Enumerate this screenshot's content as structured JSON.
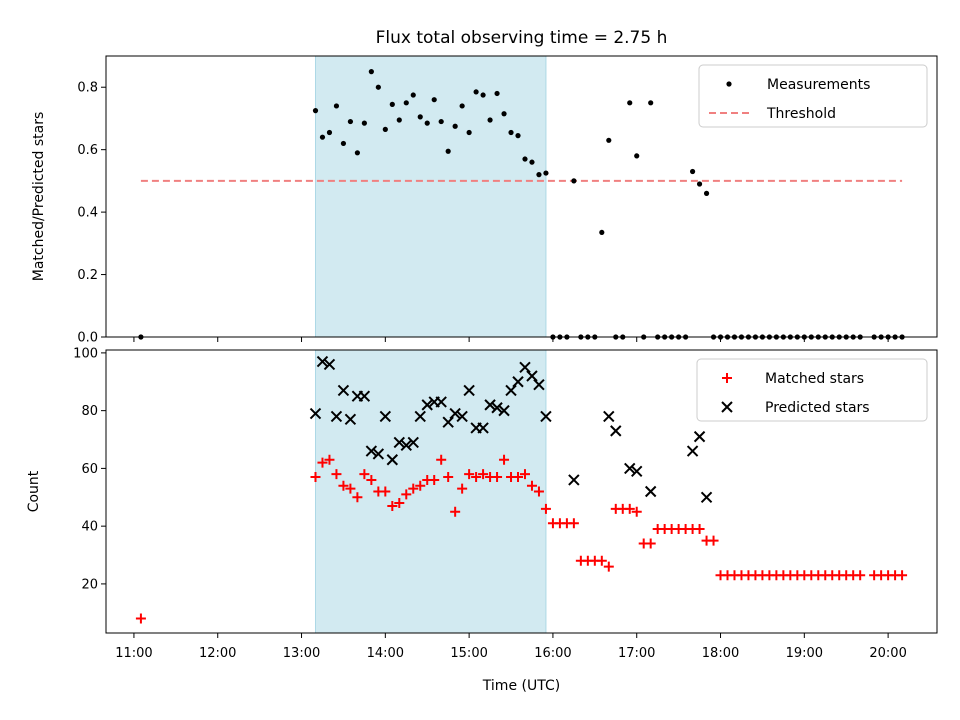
{
  "title": "Flux total observing time = 2.75 h",
  "colors": {
    "measurement": "#000000",
    "threshold": "#f08080",
    "matched": "#ff0000",
    "predicted": "#000000",
    "span_fill": "#add8e6"
  },
  "chart_data": [
    {
      "type": "scatter",
      "name": "ratio",
      "ylabel": "Matched/Predicted stars",
      "xlabel": "",
      "x_range": [
        "10:40",
        "20:35"
      ],
      "ylim": [
        0,
        0.9
      ],
      "y_ticks": [
        0.0,
        0.2,
        0.4,
        0.6,
        0.8
      ],
      "y_tick_labels": [
        "0.0",
        "0.2",
        "0.4",
        "0.6",
        "0.8"
      ],
      "highlight_span": [
        "13:10",
        "15:55"
      ],
      "legend": {
        "position": "upper right",
        "entries": [
          "Measurements",
          "Threshold"
        ]
      },
      "threshold": {
        "label": "Threshold",
        "value": 0.5,
        "x_range": [
          "11:05",
          "20:10"
        ]
      },
      "series": [
        {
          "name": "Measurements",
          "points": [
            [
              "11:05",
              0.0
            ],
            [
              "13:10",
              0.725
            ],
            [
              "13:15",
              0.64
            ],
            [
              "13:20",
              0.655
            ],
            [
              "13:25",
              0.74
            ],
            [
              "13:30",
              0.62
            ],
            [
              "13:35",
              0.69
            ],
            [
              "13:40",
              0.59
            ],
            [
              "13:45",
              0.685
            ],
            [
              "13:50",
              0.85
            ],
            [
              "13:55",
              0.8
            ],
            [
              "14:00",
              0.665
            ],
            [
              "14:05",
              0.745
            ],
            [
              "14:10",
              0.695
            ],
            [
              "14:15",
              0.75
            ],
            [
              "14:20",
              0.775
            ],
            [
              "14:25",
              0.705
            ],
            [
              "14:30",
              0.685
            ],
            [
              "14:35",
              0.76
            ],
            [
              "14:40",
              0.69
            ],
            [
              "14:45",
              0.595
            ],
            [
              "14:50",
              0.675
            ],
            [
              "14:55",
              0.74
            ],
            [
              "15:00",
              0.655
            ],
            [
              "15:05",
              0.785
            ],
            [
              "15:10",
              0.775
            ],
            [
              "15:15",
              0.695
            ],
            [
              "15:20",
              0.78
            ],
            [
              "15:25",
              0.715
            ],
            [
              "15:30",
              0.655
            ],
            [
              "15:35",
              0.645
            ],
            [
              "15:40",
              0.57
            ],
            [
              "15:45",
              0.56
            ],
            [
              "15:50",
              0.52
            ],
            [
              "15:55",
              0.525
            ],
            [
              "16:00",
              0.0
            ],
            [
              "16:05",
              0.0
            ],
            [
              "16:10",
              0.0
            ],
            [
              "16:15",
              0.5
            ],
            [
              "16:20",
              0.0
            ],
            [
              "16:25",
              0.0
            ],
            [
              "16:30",
              0.0
            ],
            [
              "16:35",
              0.335
            ],
            [
              "16:40",
              0.63
            ],
            [
              "16:45",
              0.0
            ],
            [
              "16:50",
              0.0
            ],
            [
              "16:55",
              0.75
            ],
            [
              "17:00",
              0.58
            ],
            [
              "17:05",
              0.0
            ],
            [
              "17:10",
              0.75
            ],
            [
              "17:15",
              0.0
            ],
            [
              "17:20",
              0.0
            ],
            [
              "17:25",
              0.0
            ],
            [
              "17:30",
              0.0
            ],
            [
              "17:35",
              0.0
            ],
            [
              "17:40",
              0.53
            ],
            [
              "17:45",
              0.49
            ],
            [
              "17:50",
              0.46
            ],
            [
              "17:55",
              0.0
            ],
            [
              "18:00",
              0.0
            ],
            [
              "18:05",
              0.0
            ],
            [
              "18:10",
              0.0
            ],
            [
              "18:15",
              0.0
            ],
            [
              "18:20",
              0.0
            ],
            [
              "18:25",
              0.0
            ],
            [
              "18:30",
              0.0
            ],
            [
              "18:35",
              0.0
            ],
            [
              "18:40",
              0.0
            ],
            [
              "18:45",
              0.0
            ],
            [
              "18:50",
              0.0
            ],
            [
              "18:55",
              0.0
            ],
            [
              "19:00",
              0.0
            ],
            [
              "19:05",
              0.0
            ],
            [
              "19:10",
              0.0
            ],
            [
              "19:15",
              0.0
            ],
            [
              "19:20",
              0.0
            ],
            [
              "19:25",
              0.0
            ],
            [
              "19:30",
              0.0
            ],
            [
              "19:35",
              0.0
            ],
            [
              "19:40",
              0.0
            ],
            [
              "19:50",
              0.0
            ],
            [
              "19:55",
              0.0
            ],
            [
              "20:00",
              0.0
            ],
            [
              "20:05",
              0.0
            ],
            [
              "20:10",
              0.0
            ]
          ]
        }
      ]
    },
    {
      "type": "scatter",
      "name": "counts",
      "ylabel": "Count",
      "xlabel": "Time (UTC)",
      "x_range": [
        "10:40",
        "20:35"
      ],
      "ylim": [
        3,
        101
      ],
      "y_ticks": [
        20,
        40,
        60,
        80,
        100
      ],
      "y_tick_labels": [
        "20",
        "40",
        "60",
        "80",
        "100"
      ],
      "x_ticks": [
        "11:00",
        "12:00",
        "13:00",
        "14:00",
        "15:00",
        "16:00",
        "17:00",
        "18:00",
        "19:00",
        "20:00"
      ],
      "highlight_span": [
        "13:10",
        "15:55"
      ],
      "legend": {
        "position": "upper right",
        "entries": [
          "Matched stars",
          "Predicted stars"
        ]
      },
      "series": [
        {
          "name": "Matched stars",
          "marker": "plus",
          "points": [
            [
              "11:05",
              8
            ],
            [
              "13:10",
              57
            ],
            [
              "13:15",
              62
            ],
            [
              "13:20",
              63
            ],
            [
              "13:25",
              58
            ],
            [
              "13:30",
              54
            ],
            [
              "13:35",
              53
            ],
            [
              "13:40",
              50
            ],
            [
              "13:45",
              58
            ],
            [
              "13:50",
              56
            ],
            [
              "13:55",
              52
            ],
            [
              "14:00",
              52
            ],
            [
              "14:05",
              47
            ],
            [
              "14:10",
              48
            ],
            [
              "14:15",
              51
            ],
            [
              "14:20",
              53
            ],
            [
              "14:25",
              54
            ],
            [
              "14:30",
              56
            ],
            [
              "14:35",
              56
            ],
            [
              "14:40",
              63
            ],
            [
              "14:45",
              57
            ],
            [
              "14:50",
              45
            ],
            [
              "14:55",
              53
            ],
            [
              "15:00",
              58
            ],
            [
              "15:05",
              57
            ],
            [
              "15:10",
              58
            ],
            [
              "15:15",
              57
            ],
            [
              "15:20",
              57
            ],
            [
              "15:25",
              63
            ],
            [
              "15:30",
              57
            ],
            [
              "15:35",
              57
            ],
            [
              "15:40",
              58
            ],
            [
              "15:45",
              54
            ],
            [
              "15:50",
              52
            ],
            [
              "15:55",
              46
            ],
            [
              "16:00",
              41
            ],
            [
              "16:05",
              41
            ],
            [
              "16:10",
              41
            ],
            [
              "16:15",
              41
            ],
            [
              "16:20",
              28
            ],
            [
              "16:25",
              28
            ],
            [
              "16:30",
              28
            ],
            [
              "16:35",
              28
            ],
            [
              "16:40",
              26
            ],
            [
              "16:45",
              46
            ],
            [
              "16:50",
              46
            ],
            [
              "16:55",
              46
            ],
            [
              "17:00",
              45
            ],
            [
              "17:05",
              34
            ],
            [
              "17:10",
              34
            ],
            [
              "17:15",
              39
            ],
            [
              "17:20",
              39
            ],
            [
              "17:25",
              39
            ],
            [
              "17:30",
              39
            ],
            [
              "17:35",
              39
            ],
            [
              "17:40",
              39
            ],
            [
              "17:45",
              39
            ],
            [
              "17:50",
              35
            ],
            [
              "17:55",
              35
            ],
            [
              "18:00",
              23
            ],
            [
              "18:05",
              23
            ],
            [
              "18:10",
              23
            ],
            [
              "18:15",
              23
            ],
            [
              "18:20",
              23
            ],
            [
              "18:25",
              23
            ],
            [
              "18:30",
              23
            ],
            [
              "18:35",
              23
            ],
            [
              "18:40",
              23
            ],
            [
              "18:45",
              23
            ],
            [
              "18:50",
              23
            ],
            [
              "18:55",
              23
            ],
            [
              "19:00",
              23
            ],
            [
              "19:05",
              23
            ],
            [
              "19:10",
              23
            ],
            [
              "19:15",
              23
            ],
            [
              "19:20",
              23
            ],
            [
              "19:25",
              23
            ],
            [
              "19:30",
              23
            ],
            [
              "19:35",
              23
            ],
            [
              "19:40",
              23
            ],
            [
              "19:50",
              23
            ],
            [
              "19:55",
              23
            ],
            [
              "20:00",
              23
            ],
            [
              "20:05",
              23
            ],
            [
              "20:10",
              23
            ]
          ]
        },
        {
          "name": "Predicted stars",
          "marker": "x",
          "points": [
            [
              "13:10",
              79
            ],
            [
              "13:15",
              97
            ],
            [
              "13:20",
              96
            ],
            [
              "13:25",
              78
            ],
            [
              "13:30",
              87
            ],
            [
              "13:35",
              77
            ],
            [
              "13:40",
              85
            ],
            [
              "13:45",
              85
            ],
            [
              "13:50",
              66
            ],
            [
              "13:55",
              65
            ],
            [
              "14:00",
              78
            ],
            [
              "14:05",
              63
            ],
            [
              "14:10",
              69
            ],
            [
              "14:15",
              68
            ],
            [
              "14:20",
              69
            ],
            [
              "14:25",
              78
            ],
            [
              "14:30",
              82
            ],
            [
              "14:35",
              83
            ],
            [
              "14:40",
              83
            ],
            [
              "14:45",
              76
            ],
            [
              "14:50",
              79
            ],
            [
              "14:55",
              78
            ],
            [
              "15:00",
              87
            ],
            [
              "15:05",
              74
            ],
            [
              "15:10",
              74
            ],
            [
              "15:15",
              82
            ],
            [
              "15:20",
              81
            ],
            [
              "15:25",
              80
            ],
            [
              "15:30",
              87
            ],
            [
              "15:35",
              90
            ],
            [
              "15:40",
              95
            ],
            [
              "15:45",
              92
            ],
            [
              "15:50",
              89
            ],
            [
              "15:55",
              78
            ],
            [
              "16:15",
              56
            ],
            [
              "16:40",
              78
            ],
            [
              "16:45",
              73
            ],
            [
              "16:55",
              60
            ],
            [
              "17:00",
              59
            ],
            [
              "17:10",
              52
            ],
            [
              "17:40",
              66
            ],
            [
              "17:45",
              71
            ],
            [
              "17:50",
              50
            ]
          ]
        }
      ]
    }
  ]
}
